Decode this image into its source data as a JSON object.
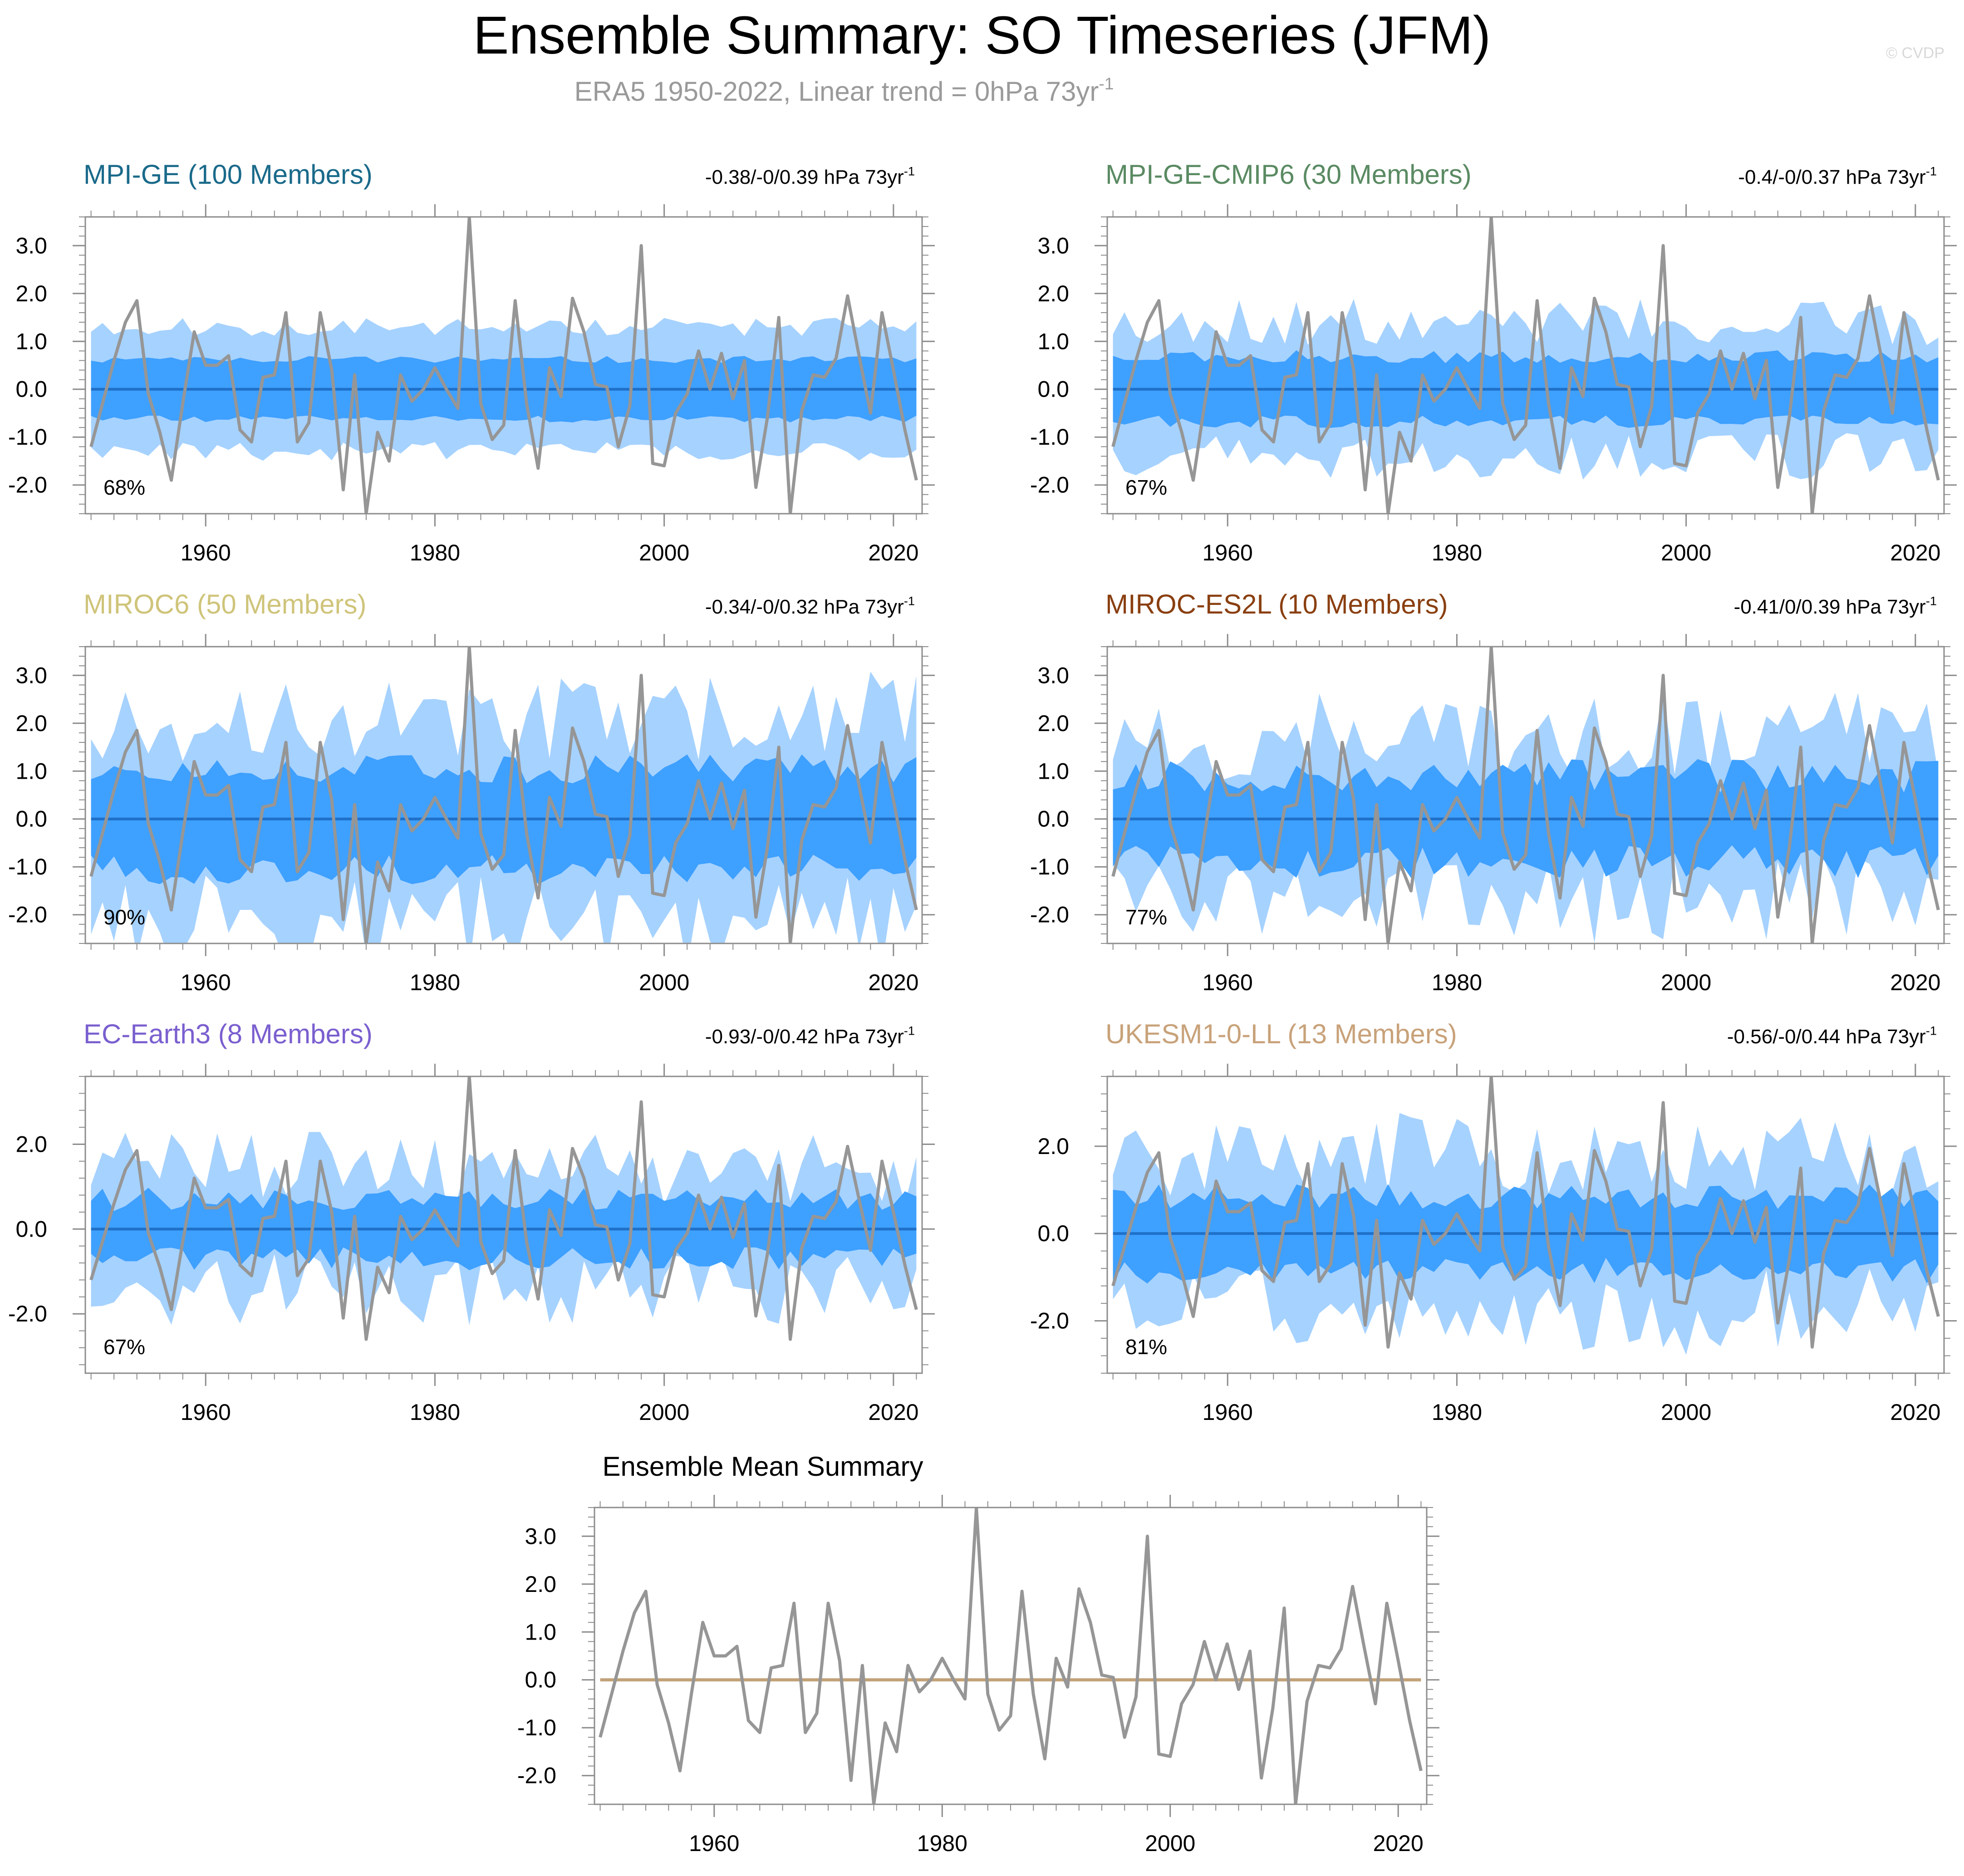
{
  "title": "Ensemble Summary: SO Timeseries (JFM)",
  "subtitle": "ERA5 1950-2022, Linear trend = 0hPa 73yr",
  "subtitle_sup": "-1",
  "watermark": "© CVDP",
  "colors": {
    "outer_band": "#a6d2ff",
    "inner_band": "#3ea0ff",
    "mean_line": "#1f70c8",
    "obs_line": "#969696",
    "frame": "#8c8c8c",
    "text": "#000000",
    "em_line": "#c2a27a"
  },
  "chart_data": [
    {
      "type": "area",
      "title": "MPI-GE (100 Members)",
      "title_color": "#1a6a8a",
      "trend": "-0.38/-0/0.39 hPa 73yr",
      "trend_sup": "-1",
      "pct": "68%",
      "ylim": [
        -2.6,
        3.6
      ],
      "yticks": [
        "3.0",
        "2.0",
        "1.0",
        "0.0",
        "-1.0",
        "-2.0"
      ],
      "ytick_values": [
        3,
        2,
        1,
        0,
        -1,
        -2
      ],
      "xticks": [
        "1960",
        "1980",
        "2000",
        "2020"
      ],
      "xtick_values": [
        1960,
        1980,
        2000,
        2020
      ],
      "xlim": [
        1949.5,
        2022.5
      ],
      "outer_amp": 1.3,
      "outer_var": 0.15,
      "inner_amp": 0.62,
      "inner_var": 0.12,
      "seed": 11
    },
    {
      "type": "area",
      "title": "MPI-GE-CMIP6 (30 Members)",
      "title_color": "#5a8a62",
      "trend": "-0.4/-0/0.37 hPa 73yr",
      "trend_sup": "-1",
      "pct": "67%",
      "ylim": [
        -2.6,
        3.6
      ],
      "yticks": [
        "3.0",
        "2.0",
        "1.0",
        "0.0",
        "-1.0",
        "-2.0"
      ],
      "ytick_values": [
        3,
        2,
        1,
        0,
        -1,
        -2
      ],
      "xticks": [
        "1960",
        "1980",
        "2000",
        "2020"
      ],
      "xtick_values": [
        1960,
        1980,
        2000,
        2020
      ],
      "xlim": [
        1949.5,
        2022.5
      ],
      "outer_amp": 1.4,
      "outer_var": 0.35,
      "inner_amp": 0.68,
      "inner_var": 0.2,
      "seed": 23
    },
    {
      "type": "area",
      "title": "MIROC6 (50 Members)",
      "title_color": "#cfc47a",
      "trend": "-0.34/-0/0.32 hPa 73yr",
      "trend_sup": "-1",
      "pct": "90%",
      "ylim": [
        -2.6,
        3.6
      ],
      "yticks": [
        "3.0",
        "2.0",
        "1.0",
        "0.0",
        "-1.0",
        "-2.0"
      ],
      "ytick_values": [
        3,
        2,
        1,
        0,
        -1,
        -2
      ],
      "xticks": [
        "1960",
        "1980",
        "2000",
        "2020"
      ],
      "xtick_values": [
        1960,
        1980,
        2000,
        2020
      ],
      "xlim": [
        1949.5,
        2022.5
      ],
      "outer_amp": 2.15,
      "outer_var": 0.45,
      "inner_amp": 1.05,
      "inner_var": 0.3,
      "seed": 37
    },
    {
      "type": "area",
      "title": "MIROC-ES2L (10 Members)",
      "title_color": "#8a3f10",
      "trend": "-0.41/0/0.39 hPa 73yr",
      "trend_sup": "-1",
      "pct": "77%",
      "ylim": [
        -2.6,
        3.6
      ],
      "yticks": [
        "3.0",
        "2.0",
        "1.0",
        "0.0",
        "-1.0",
        "-2.0"
      ],
      "ytick_values": [
        3,
        2,
        1,
        0,
        -1,
        -2
      ],
      "xticks": [
        "1960",
        "1980",
        "2000",
        "2020"
      ],
      "xtick_values": [
        1960,
        1980,
        2000,
        2020
      ],
      "xlim": [
        1949.5,
        2022.5
      ],
      "outer_amp": 1.7,
      "outer_var": 0.55,
      "inner_amp": 0.9,
      "inner_var": 0.4,
      "seed": 53
    },
    {
      "type": "area",
      "title": "EC-Earth3 (8 Members)",
      "title_color": "#7a5fcf",
      "trend": "-0.93/-0/0.42 hPa 73yr",
      "trend_sup": "-1",
      "pct": "67%",
      "ylim": [
        -3.4,
        3.6
      ],
      "yticks": [
        "2.0",
        "0.0",
        "-2.0"
      ],
      "ytick_values": [
        2,
        0,
        -2
      ],
      "xticks": [
        "1960",
        "1980",
        "2000",
        "2020"
      ],
      "xtick_values": [
        1960,
        1980,
        2000,
        2020
      ],
      "xlim": [
        1949.5,
        2022.5
      ],
      "outer_amp": 1.45,
      "outer_var": 0.6,
      "inner_amp": 0.7,
      "inner_var": 0.4,
      "seed": 71
    },
    {
      "type": "area",
      "title": "UKESM1-0-LL (13 Members)",
      "title_color": "#c8a27a",
      "trend": "-0.56/-0/0.44 hPa 73yr",
      "trend_sup": "-1",
      "pct": "81%",
      "ylim": [
        -3.2,
        3.6
      ],
      "yticks": [
        "2.0",
        "0.0",
        "-2.0"
      ],
      "ytick_values": [
        2,
        0,
        -2
      ],
      "xticks": [
        "1960",
        "1980",
        "2000",
        "2020"
      ],
      "xtick_values": [
        1960,
        1980,
        2000,
        2020
      ],
      "xlim": [
        1949.5,
        2022.5
      ],
      "outer_amp": 1.8,
      "outer_var": 0.55,
      "inner_amp": 0.85,
      "inner_var": 0.35,
      "seed": 89
    },
    {
      "type": "line",
      "title": "Ensemble Mean Summary",
      "title_color": "#000000",
      "ylim": [
        -2.6,
        3.6
      ],
      "yticks": [
        "3.0",
        "2.0",
        "1.0",
        "0.0",
        "-1.0",
        "-2.0"
      ],
      "ytick_values": [
        3,
        2,
        1,
        0,
        -1,
        -2
      ],
      "xticks": [
        "1960",
        "1980",
        "2000",
        "2020"
      ],
      "xtick_values": [
        1960,
        1980,
        2000,
        2020
      ],
      "xlim": [
        1949.5,
        2022.5
      ]
    }
  ],
  "era5": {
    "years_start": 1950,
    "values": [
      -1.2,
      -0.3,
      0.6,
      1.4,
      1.85,
      -0.1,
      -0.9,
      -1.9,
      -0.3,
      1.2,
      0.5,
      0.5,
      0.7,
      -0.85,
      -1.1,
      0.25,
      0.3,
      1.6,
      -1.1,
      -0.7,
      1.6,
      0.4,
      -2.1,
      0.3,
      -2.6,
      -0.9,
      -1.5,
      0.3,
      -0.25,
      0.0,
      0.45,
      0.0,
      -0.4,
      3.6,
      -0.3,
      -1.05,
      -0.75,
      1.85,
      -0.3,
      -1.65,
      0.45,
      -0.15,
      1.9,
      1.2,
      0.1,
      0.05,
      -1.2,
      -0.35,
      3.0,
      -1.55,
      -1.6,
      -0.5,
      -0.1,
      0.8,
      0.0,
      0.75,
      -0.2,
      0.6,
      -2.05,
      -0.6,
      1.5,
      -2.6,
      -0.45,
      0.3,
      0.25,
      0.65,
      1.95,
      0.7,
      -0.5,
      1.6,
      0.4,
      -0.85,
      -1.9
    ]
  }
}
